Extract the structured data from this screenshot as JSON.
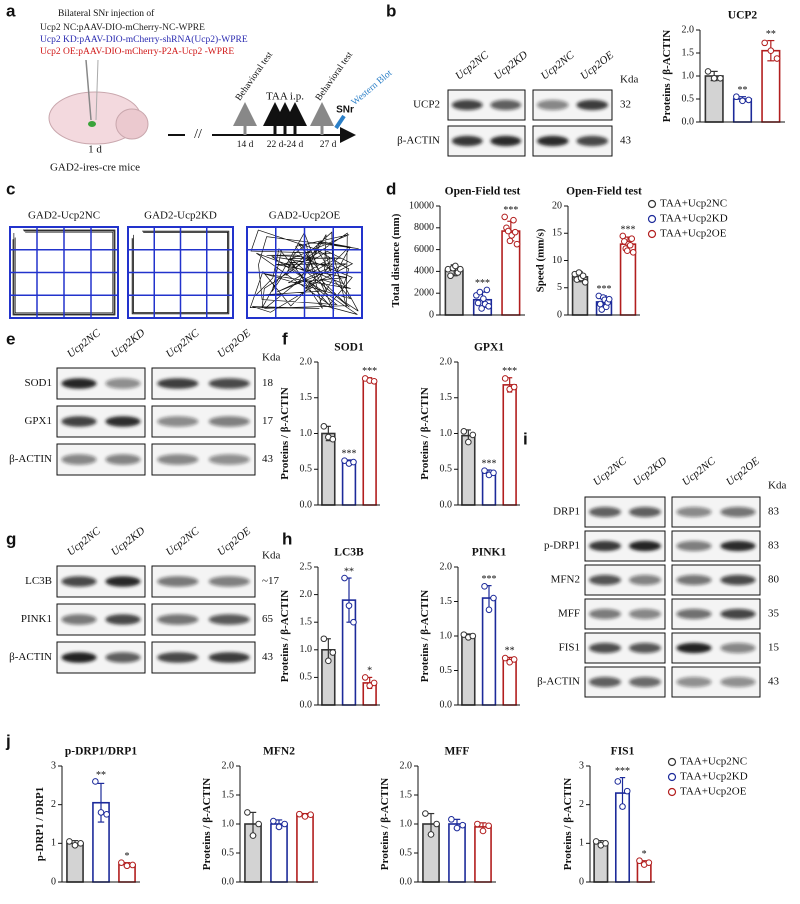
{
  "panel_labels": [
    "a",
    "b",
    "c",
    "d",
    "e",
    "f",
    "g",
    "h",
    "i",
    "j"
  ],
  "schematic": {
    "title": "Bilateral SNr injection of",
    "constructs": [
      {
        "text": "Ucp2 NC:pAAV-DIO-mCherry-NC-WPRE",
        "color": "#222222"
      },
      {
        "text": "Ucp2 KD:pAAV-DIO-mCherry-shRNA(Ucp2)-WPRE",
        "color": "#2a2ab0"
      },
      {
        "text": "Ucp2 OE:pAAV-DIO-mCherry-P2A-Ucp2 -WPRE",
        "color": "#d01818"
      }
    ],
    "timepoint_injection": "1 d",
    "mouse": "GAD2-ires-cre mice",
    "break": "//",
    "events": [
      "Behavioral test",
      "TAA i.p.",
      "Behavioral test",
      "Western Blot"
    ],
    "region": "SNr",
    "days": [
      "14 d",
      "22 d-24 d",
      "27 d"
    ]
  },
  "groups": [
    {
      "name": "TAA+Ucp2NC",
      "fill": "#d3d3d3",
      "stroke": "#333333"
    },
    {
      "name": "TAA+Ucp2KD",
      "fill": "#ffffff",
      "stroke": "#1c2a9a"
    },
    {
      "name": "TAA+Ucp2OE",
      "fill": "#ffffff",
      "stroke": "#b21e1e"
    }
  ],
  "tracks": {
    "titles": [
      "GAD2-Ucp2NC",
      "GAD2-Ucp2KD",
      "GAD2-Ucp2OE"
    ]
  },
  "blots": [
    {
      "columns": [
        "Ucp2NC",
        "Ucp2KD",
        "Ucp2NC",
        "Ucp2OE"
      ],
      "unit": "Kda",
      "rows": [
        {
          "label": "UCP2",
          "kda": 32
        },
        {
          "label": "β-ACTIN",
          "kda": 43
        }
      ]
    },
    {
      "columns": [
        "Ucp2NC",
        "Ucp2KD",
        "Ucp2NC",
        "Ucp2OE"
      ],
      "unit": "Kda",
      "rows": [
        {
          "label": "SOD1",
          "kda": 18
        },
        {
          "label": "GPX1",
          "kda": 17
        },
        {
          "label": "β-ACTIN",
          "kda": 43
        }
      ]
    },
    {
      "columns": [
        "Ucp2NC",
        "Ucp2KD",
        "Ucp2NC",
        "Ucp2OE"
      ],
      "unit": "Kda",
      "rows": [
        {
          "label": "LC3B",
          "kda": "~17"
        },
        {
          "label": "PINK1",
          "kda": 65
        },
        {
          "label": "β-ACTIN",
          "kda": 43
        }
      ]
    },
    {
      "columns": [
        "Ucp2NC",
        "Ucp2KD",
        "Ucp2NC",
        "Ucp2OE"
      ],
      "unit": "Kda",
      "rows": [
        {
          "label": "DRP1",
          "kda": 83
        },
        {
          "label": "p-DRP1",
          "kda": 83
        },
        {
          "label": "MFN2",
          "kda": 80
        },
        {
          "label": "MFF",
          "kda": 35
        },
        {
          "label": "FIS1",
          "kda": 15
        },
        {
          "label": "β-ACTIN",
          "kda": 43
        }
      ]
    }
  ],
  "chart_data": [
    {
      "type": "bar",
      "title": "UCP2",
      "ylabel": "Proteins / β-ACTIN",
      "ylim": [
        0,
        2
      ],
      "yticks": [
        {
          "value": 0,
          "label": "0.0"
        },
        0.5,
        {
          "value": 1,
          "label": "1.0"
        },
        1.5,
        {
          "value": 2,
          "label": "2.0"
        }
      ],
      "values": [
        1.0,
        0.5,
        1.55
      ],
      "errors": [
        0.1,
        0.05,
        0.22
      ],
      "points": [
        [
          1.1,
          0.95,
          0.95
        ],
        [
          0.55,
          0.46,
          0.48
        ],
        [
          1.72,
          1.55,
          1.38
        ]
      ],
      "significance": [
        null,
        "**",
        "**"
      ]
    },
    {
      "type": "bar",
      "title": "Open-Field test",
      "ylabel": "Total distance (mm)",
      "ylim": [
        0,
        10000
      ],
      "yticks": [
        0,
        2000,
        4000,
        6000,
        8000,
        10000
      ],
      "values": [
        4100,
        1400,
        7700
      ],
      "errors": [
        500,
        700,
        900
      ],
      "points": [
        [
          4200,
          3600,
          4300,
          4500,
          3900,
          4200
        ],
        [
          1800,
          1100,
          2100,
          600,
          1500,
          1000,
          2300,
          800
        ],
        [
          9000,
          8000,
          7700,
          6800,
          7300,
          8700,
          7600,
          6500
        ]
      ],
      "significance": [
        null,
        "***",
        "***"
      ]
    },
    {
      "type": "bar",
      "title": "Open-Field test",
      "ylabel": "Speed (mm/s)",
      "ylim": [
        0,
        20
      ],
      "yticks": [
        0,
        5,
        10,
        15,
        20
      ],
      "values": [
        7,
        2.4,
        13
      ],
      "errors": [
        0.9,
        1.1,
        1.3
      ],
      "points": [
        [
          7.5,
          6.5,
          7.8,
          6.8,
          7.2,
          6.0
        ],
        [
          3.5,
          2.0,
          1.0,
          3.2,
          2.8,
          1.5,
          2.3,
          2.9
        ],
        [
          14.5,
          13.5,
          12.2,
          11.8,
          13.0,
          12.8,
          14.0,
          11.5
        ]
      ],
      "significance": [
        null,
        "***",
        "***"
      ]
    },
    {
      "type": "bar",
      "title": "SOD1",
      "ylabel": "Proteins / β-ACTIN",
      "ylim": [
        0,
        2
      ],
      "yticks": [
        {
          "value": 0,
          "label": "0.0"
        },
        0.5,
        {
          "value": 1,
          "label": "1.0"
        },
        1.5,
        {
          "value": 2,
          "label": "2.0"
        }
      ],
      "values": [
        1.0,
        0.6,
        1.75
      ],
      "errors": [
        0.1,
        0.03,
        0.03
      ],
      "points": [
        [
          1.1,
          0.95,
          0.92
        ],
        [
          0.62,
          0.58,
          0.6
        ],
        [
          1.77,
          1.74,
          1.73
        ]
      ],
      "significance": [
        null,
        "***",
        "***"
      ]
    },
    {
      "type": "bar",
      "title": "GPX1",
      "ylabel": "Proteins / β-ACTIN",
      "ylim": [
        0,
        2
      ],
      "yticks": [
        {
          "value": 0,
          "label": "0.0"
        },
        0.5,
        {
          "value": 1,
          "label": "1.0"
        },
        1.5,
        {
          "value": 2,
          "label": "2.0"
        }
      ],
      "values": [
        0.97,
        0.45,
        1.68
      ],
      "errors": [
        0.08,
        0.04,
        0.1
      ],
      "points": [
        [
          1.03,
          0.88,
          0.98
        ],
        [
          0.48,
          0.42,
          0.45
        ],
        [
          1.77,
          1.62,
          1.65
        ]
      ],
      "significance": [
        null,
        "***",
        "***"
      ]
    },
    {
      "type": "bar",
      "title": "LC3B",
      "ylabel": "Proteins / β-ACTIN",
      "ylim": [
        0,
        2.5
      ],
      "yticks": [
        {
          "value": 0,
          "label": "0.0"
        },
        0.5,
        {
          "value": 1,
          "label": "1.0"
        },
        1.5,
        {
          "value": 2,
          "label": "2.0"
        },
        2.5
      ],
      "values": [
        1.0,
        1.9,
        0.4
      ],
      "errors": [
        0.2,
        0.4,
        0.1
      ],
      "points": [
        [
          1.2,
          0.8,
          0.95
        ],
        [
          2.3,
          1.8,
          1.5
        ],
        [
          0.5,
          0.35,
          0.4
        ]
      ],
      "significance": [
        null,
        "**",
        "*"
      ]
    },
    {
      "type": "bar",
      "title": "PINK1",
      "ylabel": "Proteins / β-ACTIN",
      "ylim": [
        0,
        2
      ],
      "yticks": [
        {
          "value": 0,
          "label": "0.0"
        },
        0.5,
        {
          "value": 1,
          "label": "1.0"
        },
        1.5,
        {
          "value": 2,
          "label": "2.0"
        }
      ],
      "values": [
        1.0,
        1.55,
        0.65
      ],
      "errors": [
        0.03,
        0.18,
        0.04
      ],
      "points": [
        [
          1.02,
          0.98,
          1.0
        ],
        [
          1.72,
          1.38,
          1.55
        ],
        [
          0.68,
          0.62,
          0.66
        ]
      ],
      "significance": [
        null,
        "***",
        "**"
      ]
    },
    {
      "type": "bar",
      "title": "p-DRP1/DRP1",
      "ylabel": "p-DRP1 / DRP1",
      "ylim": [
        0,
        3
      ],
      "yticks": [
        0,
        1,
        2,
        3
      ],
      "values": [
        1.0,
        2.05,
        0.45
      ],
      "errors": [
        0.07,
        0.5,
        0.05
      ],
      "points": [
        [
          1.05,
          0.95,
          1.0
        ],
        [
          2.6,
          1.8,
          1.75
        ],
        [
          0.5,
          0.42,
          0.44
        ]
      ],
      "significance": [
        null,
        "**",
        "*"
      ]
    },
    {
      "type": "bar",
      "title": "MFN2",
      "ylabel": "Proteins / β-ACTIN",
      "ylim": [
        0,
        2
      ],
      "yticks": [
        {
          "value": 0,
          "label": "0.0"
        },
        0.5,
        {
          "value": 1,
          "label": "1.0"
        },
        1.5,
        {
          "value": 2,
          "label": "2.0"
        }
      ],
      "values": [
        1.0,
        1.0,
        1.15
      ],
      "errors": [
        0.2,
        0.07,
        0.03
      ],
      "points": [
        [
          1.2,
          0.8,
          1.0
        ],
        [
          1.05,
          0.95,
          1.0
        ],
        [
          1.17,
          1.13,
          1.16
        ]
      ],
      "significance": [
        null,
        null,
        null
      ]
    },
    {
      "type": "bar",
      "title": "MFF",
      "ylabel": "Proteins / β-ACTIN",
      "ylim": [
        0,
        2
      ],
      "yticks": [
        {
          "value": 0,
          "label": "0.0"
        },
        0.5,
        {
          "value": 1,
          "label": "1.0"
        },
        1.5,
        {
          "value": 2,
          "label": "2.0"
        }
      ],
      "values": [
        1.0,
        1.0,
        0.95
      ],
      "errors": [
        0.18,
        0.08,
        0.07
      ],
      "points": [
        [
          1.18,
          0.82,
          1.0
        ],
        [
          1.08,
          0.93,
          0.98
        ],
        [
          1.0,
          0.88,
          0.97
        ]
      ],
      "significance": [
        null,
        null,
        null
      ]
    },
    {
      "type": "bar",
      "title": "FIS1",
      "ylabel": "Proteins / β-ACTIN",
      "ylim": [
        0,
        3
      ],
      "yticks": [
        0,
        1,
        2,
        3
      ],
      "values": [
        1.0,
        2.3,
        0.5
      ],
      "errors": [
        0.07,
        0.4,
        0.05
      ],
      "points": [
        [
          1.05,
          0.95,
          1.0
        ],
        [
          2.6,
          1.95,
          2.35
        ],
        [
          0.55,
          0.45,
          0.5
        ]
      ],
      "significance": [
        null,
        "***",
        "*"
      ]
    }
  ]
}
